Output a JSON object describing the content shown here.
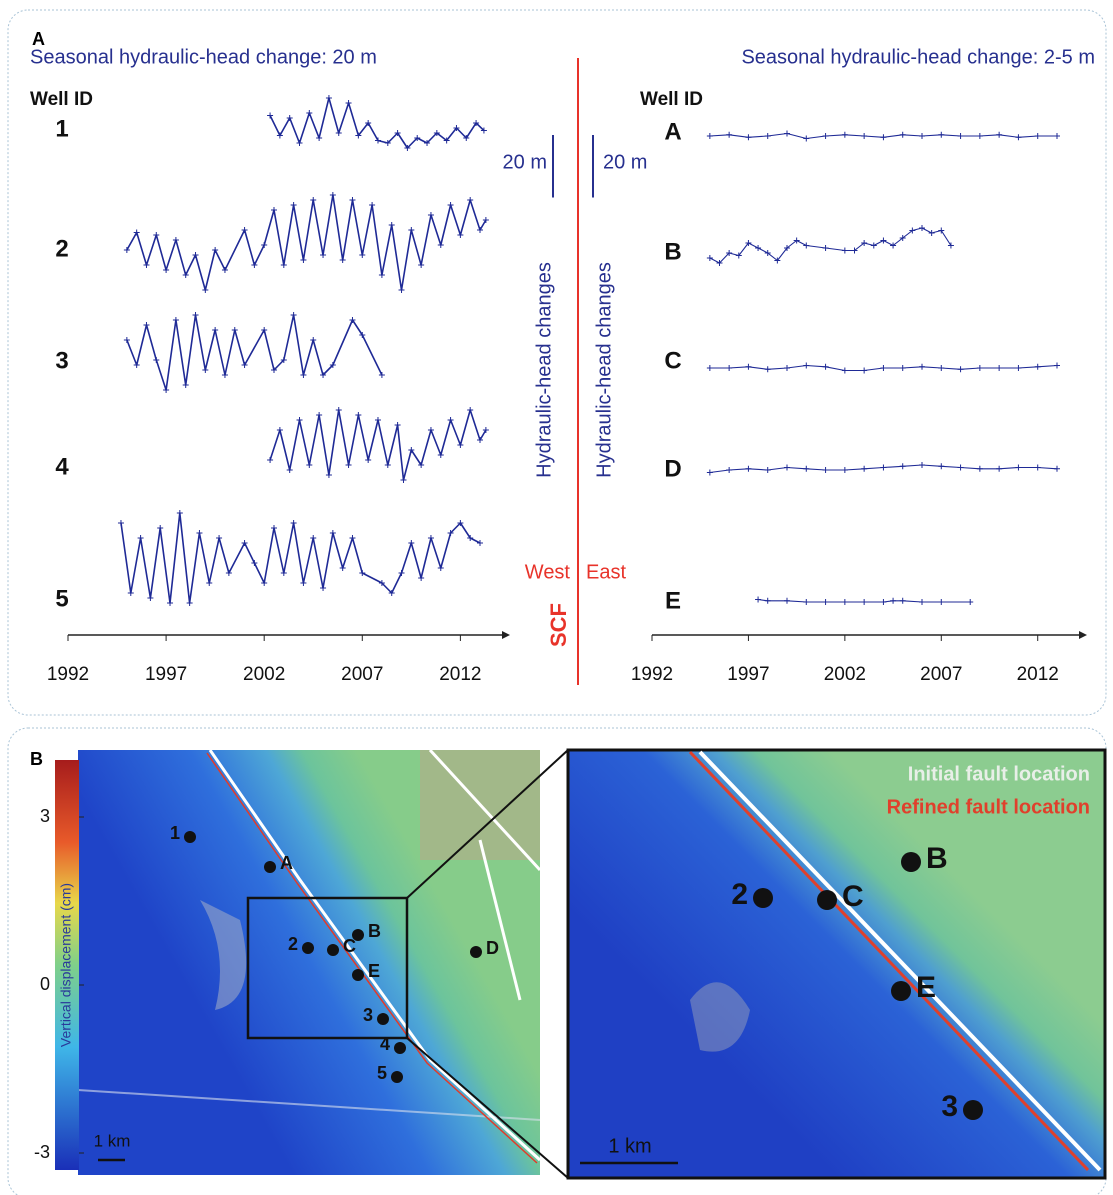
{
  "chart_data": [
    {
      "type": "line",
      "title": "Seasonal hydraulic-head change: 20 m",
      "id_header": "Well ID",
      "y_label": "Hydraulic-head changes",
      "scale_label": "20 m",
      "side_label": "West",
      "xlim": [
        1992,
        2013
      ],
      "xticks": [
        1992,
        1997,
        2002,
        2007,
        2012
      ],
      "series": [
        {
          "name": "1",
          "color": "#1f2a96",
          "x": [
            2002.3,
            2002.8,
            2003.3,
            2003.8,
            2004.3,
            2004.8,
            2005.3,
            2005.8,
            2006.3,
            2006.8,
            2007.3,
            2007.8,
            2008.3,
            2008.8,
            2009.3,
            2009.8,
            2010.3,
            2010.8,
            2011.3,
            2011.8,
            2012.3,
            2012.8,
            2013.2
          ],
          "values": [
            5,
            -3,
            4,
            -6,
            6,
            -4,
            12,
            -2,
            10,
            -3,
            2,
            -5,
            -6,
            -2,
            -8,
            -4,
            -6,
            -2,
            -5,
            0,
            -4,
            2,
            -1
          ]
        },
        {
          "name": "2",
          "color": "#1f2a96",
          "x": [
            1995.0,
            1995.5,
            1996.0,
            1996.5,
            1997.0,
            1997.5,
            1998.0,
            1998.5,
            1999.0,
            1999.5,
            2000.0,
            2001.0,
            2001.5,
            2002.0,
            2002.5,
            2003.0,
            2003.5,
            2004.0,
            2004.5,
            2005.0,
            2005.5,
            2006.0,
            2006.5,
            2007.0,
            2007.5,
            2008.0,
            2008.5,
            2009.0,
            2009.5,
            2010.0,
            2010.5,
            2011.0,
            2011.5,
            2012.0,
            2012.5,
            2013.0,
            2013.3
          ],
          "values": [
            -2,
            5,
            -8,
            4,
            -10,
            2,
            -12,
            -4,
            -18,
            -2,
            -10,
            6,
            -8,
            0,
            14,
            -8,
            16,
            -6,
            18,
            -4,
            20,
            -6,
            18,
            -4,
            16,
            -12,
            8,
            -18,
            6,
            -8,
            12,
            0,
            16,
            4,
            18,
            6,
            10
          ]
        },
        {
          "name": "3",
          "color": "#1f2a96",
          "x": [
            1995.0,
            1995.5,
            1996.0,
            1996.5,
            1997.0,
            1997.5,
            1998.0,
            1998.5,
            1999.0,
            1999.5,
            2000.0,
            2000.5,
            2001.0,
            2002.0,
            2002.5,
            2003.0,
            2003.5,
            2004.0,
            2004.5,
            2005.0,
            2005.5,
            2006.5,
            2007.0,
            2008.0
          ],
          "values": [
            4,
            -6,
            10,
            -4,
            -16,
            12,
            -14,
            14,
            -8,
            8,
            -10,
            8,
            -6,
            8,
            -8,
            -4,
            14,
            -10,
            4,
            -10,
            -6,
            12,
            6,
            -10
          ]
        },
        {
          "name": "4",
          "color": "#1f2a96",
          "x": [
            2002.3,
            2002.8,
            2003.3,
            2003.8,
            2004.3,
            2004.8,
            2005.3,
            2005.8,
            2006.3,
            2006.8,
            2007.3,
            2007.8,
            2008.3,
            2008.8,
            2009.1,
            2009.5,
            2010.0,
            2010.5,
            2011.0,
            2011.5,
            2012.0,
            2012.5,
            2013.0,
            2013.3
          ],
          "values": [
            -8,
            4,
            -12,
            8,
            -10,
            10,
            -14,
            12,
            -10,
            10,
            -8,
            8,
            -10,
            6,
            -16,
            -4,
            -10,
            4,
            -6,
            8,
            -2,
            12,
            0,
            4
          ]
        },
        {
          "name": "5",
          "color": "#1f2a96",
          "x": [
            1994.7,
            1995.2,
            1995.7,
            1996.2,
            1996.7,
            1997.2,
            1997.7,
            1998.2,
            1998.7,
            1999.2,
            1999.7,
            2000.2,
            2001.0,
            2001.5,
            2002.0,
            2002.5,
            2003.0,
            2003.5,
            2004.0,
            2004.5,
            2005.0,
            2005.5,
            2006.0,
            2006.5,
            2007.0,
            2008.0,
            2008.5,
            2009.0,
            2009.5,
            2010.0,
            2010.5,
            2011.0,
            2011.5,
            2012.0,
            2012.5,
            2013.0
          ],
          "values": [
            14,
            -14,
            8,
            -16,
            12,
            -18,
            18,
            -18,
            10,
            -10,
            8,
            -6,
            6,
            -2,
            -10,
            12,
            -6,
            14,
            -10,
            8,
            -12,
            10,
            -4,
            8,
            -6,
            -10,
            -14,
            -6,
            6,
            -8,
            8,
            -4,
            10,
            14,
            8,
            6
          ]
        }
      ]
    },
    {
      "type": "line",
      "title": "Seasonal hydraulic-head change: 2-5 m",
      "id_header": "Well ID",
      "y_label": "Hydraulic-head changes",
      "scale_label": "20 m",
      "side_label": "East",
      "xlim": [
        1992,
        2013
      ],
      "xticks": [
        1992,
        1997,
        2002,
        2007,
        2012
      ],
      "series": [
        {
          "name": "A",
          "color": "#1f2a96",
          "x": [
            1995,
            1996,
            1997,
            1998,
            1999,
            2000,
            2001,
            2002,
            2003,
            2004,
            2005,
            2006,
            2007,
            2008,
            2009,
            2010,
            2011,
            2012,
            2013
          ],
          "values": [
            0,
            0.5,
            -0.5,
            0,
            1,
            -1,
            0,
            0.5,
            0,
            -0.5,
            0.5,
            0,
            0.5,
            0,
            0,
            0.5,
            -0.5,
            0,
            0
          ]
        },
        {
          "name": "B",
          "color": "#1f2a96",
          "x": [
            1995,
            1995.5,
            1996,
            1996.5,
            1997,
            1997.5,
            1998,
            1998.5,
            1999,
            1999.5,
            2000,
            2001,
            2002,
            2002.5,
            2003,
            2003.5,
            2004,
            2004.5,
            2005,
            2005.5,
            2006,
            2006.5,
            2007,
            2007.5
          ],
          "values": [
            -4,
            -6,
            -2,
            -3,
            2,
            0,
            -2,
            -5,
            0,
            3,
            1,
            0,
            -1,
            -1,
            2,
            1,
            3,
            1,
            4,
            7,
            8,
            6,
            7,
            1
          ]
        },
        {
          "name": "C",
          "color": "#1f2a96",
          "x": [
            1995,
            1996,
            1997,
            1998,
            1999,
            2000,
            2001,
            2002,
            2003,
            2004,
            2005,
            2006,
            2007,
            2008,
            2009,
            2010,
            2011,
            2012,
            2013
          ],
          "values": [
            0,
            0,
            0.5,
            -0.5,
            0,
            1,
            0.5,
            -1,
            -1,
            0,
            0,
            0.5,
            0,
            -0.5,
            0,
            0,
            0,
            0.5,
            1
          ]
        },
        {
          "name": "D",
          "color": "#1f2a96",
          "x": [
            1995,
            1996,
            1997,
            1998,
            1999,
            2000,
            2001,
            2002,
            2003,
            2004,
            2005,
            2006,
            2007,
            2008,
            2009,
            2010,
            2011,
            2012,
            2013
          ],
          "values": [
            -1,
            0,
            0.5,
            0,
            1,
            0.5,
            0,
            0,
            0.5,
            1,
            1.5,
            2,
            1.5,
            1,
            0.5,
            0.5,
            1,
            1,
            0.5
          ]
        },
        {
          "name": "E",
          "color": "#1f2a96",
          "x": [
            1997.5,
            1998,
            1999,
            2000,
            2001,
            2002,
            2003,
            2004,
            2004.5,
            2005,
            2006,
            2007,
            2008.5
          ],
          "values": [
            1,
            0.5,
            0.5,
            0,
            0,
            0,
            0,
            0,
            0.5,
            0.5,
            0,
            0,
            0
          ]
        }
      ]
    }
  ],
  "figure": {
    "panel_a_label": "A",
    "panel_b_label": "B",
    "fault_label": "SCF",
    "colorbar": {
      "label": "Vertical displacement (cm)",
      "ticks": [
        3,
        0,
        -3
      ]
    },
    "map_wells": [
      "1",
      "A",
      "2",
      "C",
      "B",
      "E",
      "D",
      "3",
      "4",
      "5"
    ],
    "inset_wells": [
      "2",
      "C",
      "B",
      "E",
      "3"
    ],
    "legend": [
      "Initial fault location",
      "Refined fault location"
    ],
    "scale_bar": "1 km"
  }
}
